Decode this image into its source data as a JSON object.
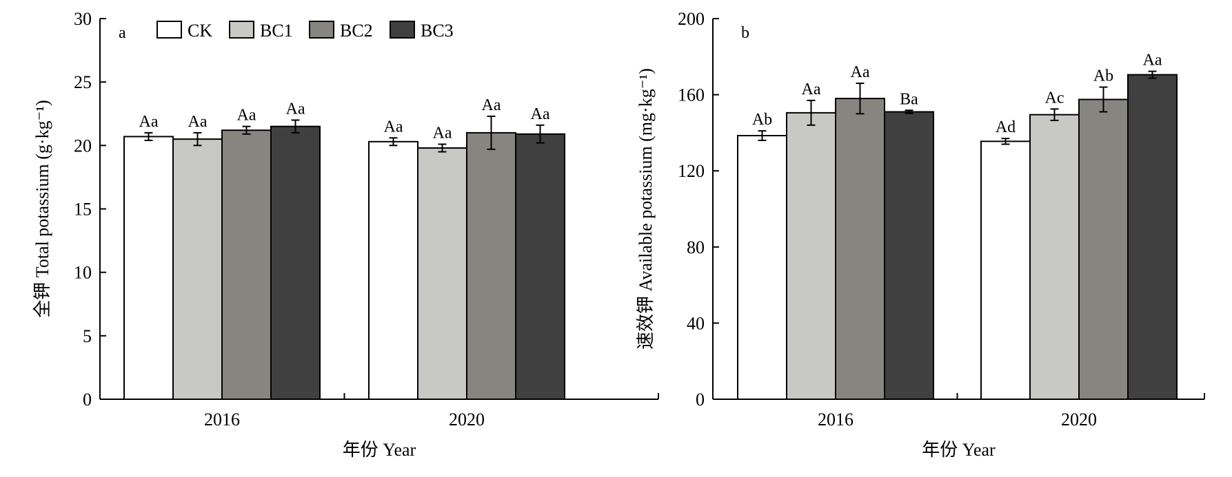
{
  "legend": {
    "entries": [
      {
        "name": "CK",
        "color": "#ffffff"
      },
      {
        "name": "BC1",
        "color": "#c8c8c4"
      },
      {
        "name": "BC2",
        "color": "#868580"
      },
      {
        "name": "BC3",
        "color": "#404040"
      }
    ]
  },
  "chart_data": [
    {
      "type": "bar",
      "panel_label": "a",
      "ylabel": "全钾 Total potassium (g·kg⁻¹)",
      "xlabel": "年份 Year",
      "categories": [
        "2016",
        "2020"
      ],
      "ylim": [
        0,
        30
      ],
      "yticks": [
        0,
        5,
        10,
        15,
        20,
        25,
        30
      ],
      "grid": false,
      "legend_position": "top",
      "series": [
        {
          "name": "CK",
          "values": [
            20.7,
            20.3
          ],
          "errors": [
            0.3,
            0.3
          ],
          "labels": [
            "Aa",
            "Aa"
          ]
        },
        {
          "name": "BC1",
          "values": [
            20.5,
            19.8
          ],
          "errors": [
            0.5,
            0.3
          ],
          "labels": [
            "Aa",
            "Aa"
          ]
        },
        {
          "name": "BC2",
          "values": [
            21.2,
            21.0
          ],
          "errors": [
            0.3,
            1.3
          ],
          "labels": [
            "Aa",
            "Aa"
          ]
        },
        {
          "name": "BC3",
          "values": [
            21.5,
            20.9
          ],
          "errors": [
            0.5,
            0.7
          ],
          "labels": [
            "Aa",
            "Aa"
          ]
        }
      ]
    },
    {
      "type": "bar",
      "panel_label": "b",
      "ylabel": "速效钾 Available potassium (mg·kg⁻¹)",
      "xlabel": "年份 Year",
      "categories": [
        "2016",
        "2020"
      ],
      "ylim": [
        0,
        200
      ],
      "yticks": [
        0,
        40,
        80,
        120,
        160,
        200
      ],
      "grid": false,
      "series": [
        {
          "name": "CK",
          "values": [
            138.5,
            135.5
          ],
          "errors": [
            2.5,
            1.5
          ],
          "labels": [
            "Ab",
            "Ad"
          ]
        },
        {
          "name": "BC1",
          "values": [
            150.5,
            149.5
          ],
          "errors": [
            6.5,
            3.0
          ],
          "labels": [
            "Aa",
            "Ac"
          ]
        },
        {
          "name": "BC2",
          "values": [
            158.0,
            157.5
          ],
          "errors": [
            8.0,
            6.5
          ],
          "labels": [
            "Aa",
            "Ab"
          ]
        },
        {
          "name": "BC3",
          "values": [
            151.0,
            170.5
          ],
          "errors": [
            0.8,
            1.8
          ],
          "labels": [
            "Ba",
            "Aa"
          ]
        }
      ]
    }
  ]
}
